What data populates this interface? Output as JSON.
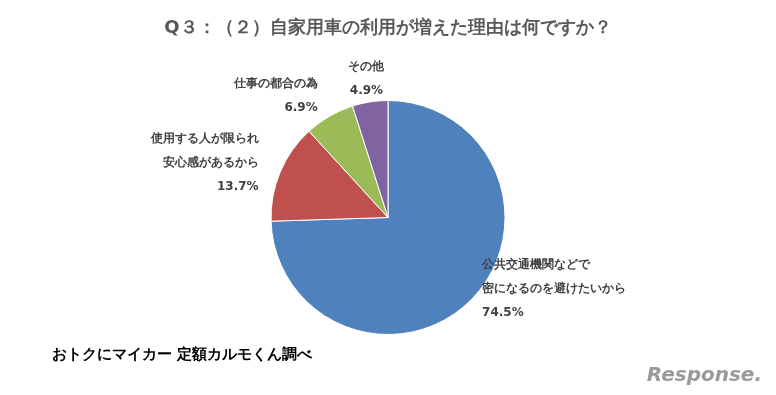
{
  "chart_data": {
    "type": "pie",
    "title": "Q３：（２）自家用車の利用が増えた理由は何ですか？",
    "categories": [
      [
        "公共交通機関などで",
        "密になるのを避けたいから"
      ],
      [
        "使用する人が限られ",
        "安心感があるから"
      ],
      [
        "仕事の都合の為"
      ],
      [
        "その他"
      ]
    ],
    "values": [
      74.5,
      13.7,
      6.9,
      4.9
    ],
    "value_labels": [
      "74.5%",
      "13.7%",
      "6.9%",
      "4.9%"
    ],
    "colors": [
      "#4f81bd",
      "#c0504d",
      "#9bbb59",
      "#8064a2"
    ],
    "data_labels": true,
    "legend": false,
    "source": "おトクにマイカー 定額カルモくん調べ",
    "watermark": "Response."
  }
}
